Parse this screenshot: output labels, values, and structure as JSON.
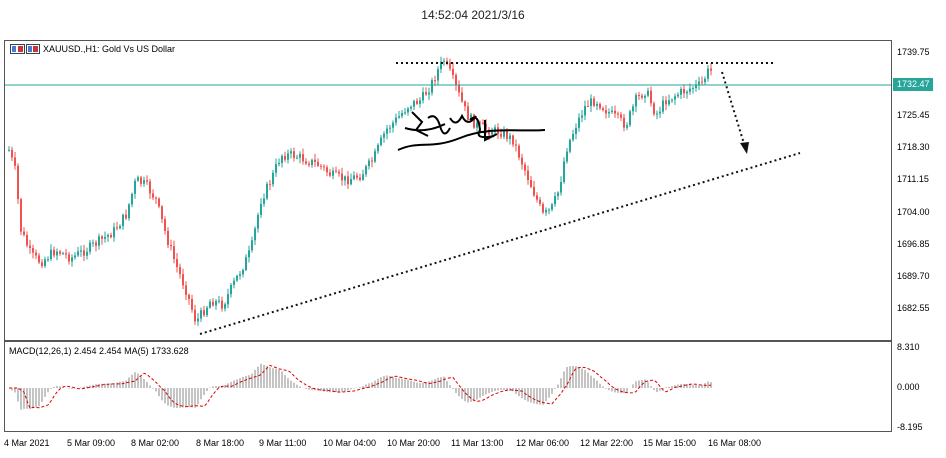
{
  "header": {
    "timestamp": "14:52:04 2021/3/16"
  },
  "chart": {
    "title": "XAUUSD.,H1:  Gold Vs US Dollar",
    "current_price": "1732.47",
    "price_levels": [
      "1739.75",
      "1725.45",
      "1718.30",
      "1711.15",
      "1704.00",
      "1696.85",
      "1689.70",
      "1682.55"
    ],
    "time_labels": [
      "4 Mar 2021",
      "5 Mar 09:00",
      "8 Mar 02:00",
      "8 Mar 18:00",
      "9 Mar 11:00",
      "10 Mar 04:00",
      "10 Mar 20:00",
      "11 Mar 13:00",
      "12 Mar 06:00",
      "12 Mar 22:00",
      "15 Mar 15:00",
      "16 Mar 08:00"
    ],
    "colors": {
      "bull": "#26a69a",
      "bear": "#ef5350",
      "current_price_line": "#26a69a"
    }
  },
  "macd": {
    "title": "MACD(12,26,1) 2.454 2.454 MA(5) 1733.628",
    "levels": [
      "8.310",
      "0.000",
      "-8.195"
    ],
    "colors": {
      "histogram": "#888888",
      "signal": "#dd0000"
    }
  },
  "icons": {
    "chart_icon": "chart-window-icon"
  }
}
